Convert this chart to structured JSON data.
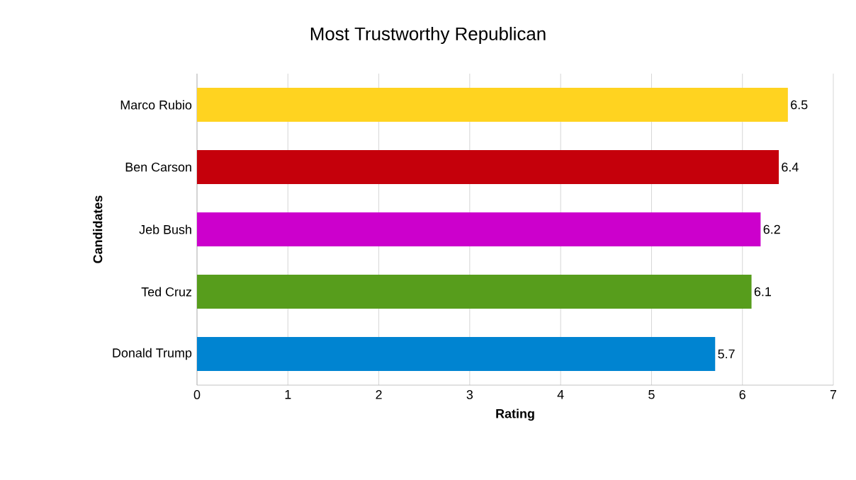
{
  "chart_data": {
    "type": "bar",
    "orientation": "horizontal",
    "title": "Most Trustworthy Republican",
    "xlabel": "Rating",
    "ylabel": "Candidates",
    "categories": [
      "Marco Rubio",
      "Ben Carson",
      "Jeb Bush",
      "Ted Cruz",
      "Donald Trump"
    ],
    "values": [
      6.5,
      6.4,
      6.2,
      6.1,
      5.7
    ],
    "colors": [
      "#ffd320",
      "#c5000b",
      "#cc00cc",
      "#579d1c",
      "#0084d1"
    ],
    "xlim": [
      0,
      7
    ],
    "xticks": [
      0,
      1,
      2,
      3,
      4,
      5,
      6,
      7
    ],
    "grid": "x",
    "data_labels": true
  }
}
